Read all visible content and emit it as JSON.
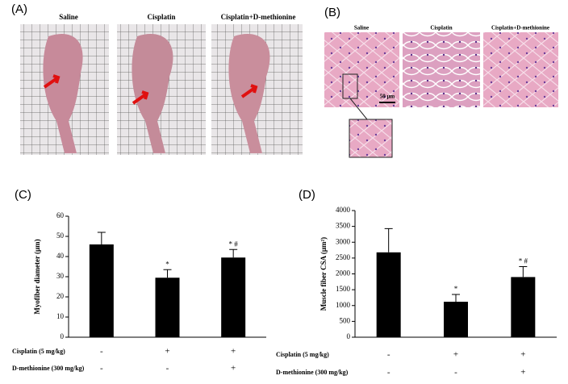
{
  "panel_a": {
    "label": "(A)",
    "captions": [
      "Saline",
      "Cisplatin",
      "Cisplatin+D-methionine"
    ]
  },
  "panel_b": {
    "label": "(B)",
    "captions": [
      "Saline",
      "Cisplatin",
      "Cisplatin+D-methionine"
    ],
    "scale_bar": "50 μm"
  },
  "chart_data": [
    {
      "type": "bar",
      "panel": "(C)",
      "y_label": "Myofiber diameter (μm)",
      "color": "#000000",
      "values": [
        46,
        29.5,
        39.5
      ],
      "errors": [
        6,
        4,
        4
      ],
      "bar_annotations": [
        null,
        "*",
        "* #"
      ],
      "ylim": [
        0,
        60
      ],
      "yticks": [
        0,
        10,
        20,
        30,
        40,
        50,
        60
      ],
      "treatment_rows": [
        {
          "name": "Cisplatin (5 mg/kg)",
          "signs": [
            "-",
            "+",
            "+"
          ]
        },
        {
          "name": "D-methionine (300 mg/kg)",
          "signs": [
            "-",
            "-",
            "+"
          ]
        }
      ]
    },
    {
      "type": "bar",
      "panel": "(D)",
      "y_label": "Muscle fiber CSA (μm²)",
      "color": "#000000",
      "values": [
        2680,
        1120,
        1900
      ],
      "errors": [
        750,
        230,
        330
      ],
      "bar_annotations": [
        null,
        "*",
        "* #"
      ],
      "ylim": [
        0,
        4000
      ],
      "yticks": [
        0,
        500,
        1000,
        1500,
        2000,
        2500,
        3000,
        3500,
        4000
      ],
      "treatment_rows": [
        {
          "name": "Cisplatin (5 mg/kg)",
          "signs": [
            "-",
            "+",
            "+"
          ]
        },
        {
          "name": "D-methionine (300 mg/kg)",
          "signs": [
            "-",
            "-",
            "+"
          ]
        }
      ]
    }
  ]
}
